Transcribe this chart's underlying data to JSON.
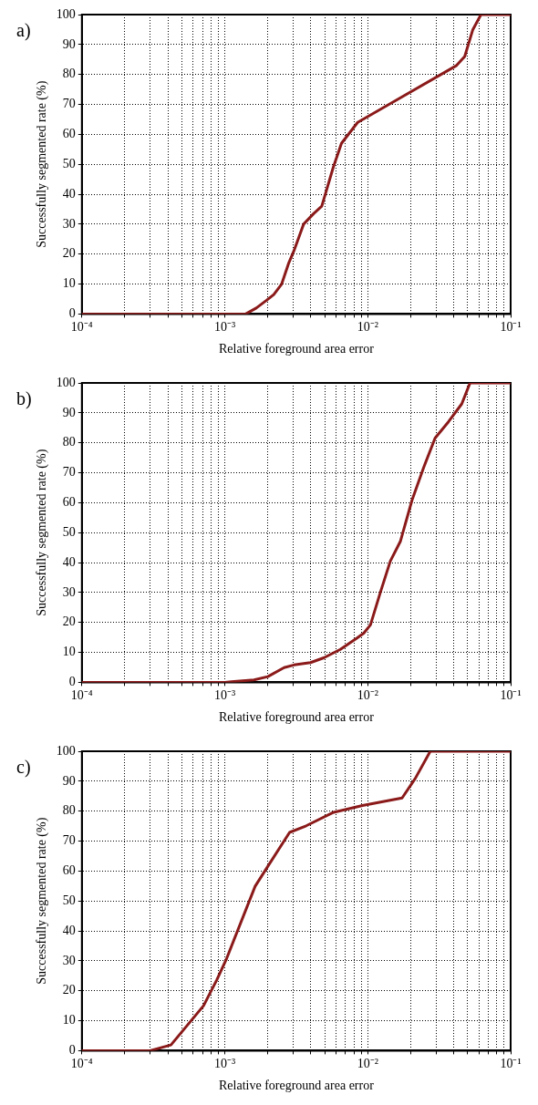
{
  "chart_data": [
    {
      "type": "line",
      "annotations": [
        "a)"
      ],
      "xlabel": "Relative foreground area error",
      "ylabel": "Successfully segmented rate (%)",
      "log": "x",
      "grid": true,
      "legend": false,
      "marker": "none",
      "line_style": "solid",
      "xlim": [
        0.0001,
        0.1
      ],
      "ylim": [
        0,
        100
      ],
      "xticks": [
        {
          "value": 0.0001,
          "label": "10⁻⁴"
        },
        {
          "value": 0.0002,
          "label": null
        },
        {
          "value": 0.0003,
          "label": null
        },
        {
          "value": 0.0004,
          "label": null
        },
        {
          "value": 0.0005,
          "label": null
        },
        {
          "value": 0.0006,
          "label": null
        },
        {
          "value": 0.0007,
          "label": null
        },
        {
          "value": 0.0008,
          "label": null
        },
        {
          "value": 0.0009,
          "label": null
        },
        {
          "value": 0.001,
          "label": "10⁻³"
        },
        {
          "value": 0.002,
          "label": null
        },
        {
          "value": 0.003,
          "label": null
        },
        {
          "value": 0.004,
          "label": null
        },
        {
          "value": 0.005,
          "label": null
        },
        {
          "value": 0.006,
          "label": null
        },
        {
          "value": 0.007,
          "label": null
        },
        {
          "value": 0.008,
          "label": null
        },
        {
          "value": 0.009,
          "label": null
        },
        {
          "value": 0.01,
          "label": "10⁻²"
        },
        {
          "value": 0.02,
          "label": null
        },
        {
          "value": 0.03,
          "label": null
        },
        {
          "value": 0.04,
          "label": null
        },
        {
          "value": 0.05,
          "label": null
        },
        {
          "value": 0.06,
          "label": null
        },
        {
          "value": 0.07,
          "label": null
        },
        {
          "value": 0.08,
          "label": null
        },
        {
          "value": 0.09,
          "label": null
        },
        {
          "value": 0.1,
          "label": "10⁻¹"
        }
      ],
      "yticks": [
        0,
        10,
        20,
        30,
        40,
        50,
        60,
        70,
        80,
        90,
        100
      ],
      "series": [
        {
          "color": "#8b1a1a",
          "x": [
            0.0001,
            0.0014,
            0.00166,
            0.00195,
            0.0022,
            0.0025,
            0.0028,
            0.00304,
            0.00356,
            0.00418,
            0.00477,
            0.00574,
            0.00655,
            0.0085,
            0.0153,
            0.0418,
            0.0477,
            0.0544,
            0.062,
            0.1
          ],
          "values": [
            0,
            0,
            2,
            4.5,
            6.5,
            10,
            17,
            21,
            30,
            33.5,
            36,
            49,
            57,
            64,
            71,
            83,
            86,
            95,
            100,
            100
          ]
        }
      ]
    },
    {
      "type": "line",
      "annotations": [
        "b)"
      ],
      "xlabel": "Relative foreground area error",
      "ylabel": "Successfully segmented rate (%)",
      "log": "x",
      "grid": true,
      "legend": false,
      "marker": "none",
      "line_style": "solid",
      "xlim": [
        0.0001,
        0.1
      ],
      "ylim": [
        0,
        100
      ],
      "xticks": [
        {
          "value": 0.0001,
          "label": "10⁻⁴"
        },
        {
          "value": 0.0002,
          "label": null
        },
        {
          "value": 0.0003,
          "label": null
        },
        {
          "value": 0.0004,
          "label": null
        },
        {
          "value": 0.0005,
          "label": null
        },
        {
          "value": 0.0006,
          "label": null
        },
        {
          "value": 0.0007,
          "label": null
        },
        {
          "value": 0.0008,
          "label": null
        },
        {
          "value": 0.0009,
          "label": null
        },
        {
          "value": 0.001,
          "label": "10⁻³"
        },
        {
          "value": 0.002,
          "label": null
        },
        {
          "value": 0.003,
          "label": null
        },
        {
          "value": 0.004,
          "label": null
        },
        {
          "value": 0.005,
          "label": null
        },
        {
          "value": 0.006,
          "label": null
        },
        {
          "value": 0.007,
          "label": null
        },
        {
          "value": 0.008,
          "label": null
        },
        {
          "value": 0.009,
          "label": null
        },
        {
          "value": 0.01,
          "label": "10⁻²"
        },
        {
          "value": 0.02,
          "label": null
        },
        {
          "value": 0.03,
          "label": null
        },
        {
          "value": 0.04,
          "label": null
        },
        {
          "value": 0.05,
          "label": null
        },
        {
          "value": 0.06,
          "label": null
        },
        {
          "value": 0.07,
          "label": null
        },
        {
          "value": 0.08,
          "label": null
        },
        {
          "value": 0.09,
          "label": null
        },
        {
          "value": 0.1,
          "label": "10⁻¹"
        }
      ],
      "yticks": [
        0,
        10,
        20,
        30,
        40,
        50,
        60,
        70,
        80,
        90,
        100
      ],
      "series": [
        {
          "color": "#8b1a1a",
          "x": [
            0.0001,
            0.001,
            0.00116,
            0.0016,
            0.002,
            0.0026,
            0.00305,
            0.00398,
            0.00493,
            0.00644,
            0.00843,
            0.00938,
            0.01045,
            0.01225,
            0.0144,
            0.0169,
            0.0204,
            0.0246,
            0.0296,
            0.0367,
            0.0455,
            0.052,
            0.1
          ],
          "values": [
            0,
            0,
            0.3,
            0.8,
            1.9,
            4.9,
            5.8,
            6.6,
            8.2,
            11,
            14.8,
            16.4,
            19.2,
            30,
            40.5,
            47,
            60.8,
            71.7,
            81.6,
            87,
            93,
            100,
            100
          ]
        }
      ]
    },
    {
      "type": "line",
      "annotations": [
        "c)"
      ],
      "xlabel": "Relative foreground area error",
      "ylabel": "Successfully segmented rate (%)",
      "log": "x",
      "grid": true,
      "legend": false,
      "marker": "none",
      "line_style": "solid",
      "xlim": [
        0.0001,
        0.1
      ],
      "ylim": [
        0,
        100
      ],
      "xticks": [
        {
          "value": 0.0001,
          "label": "10⁻⁴"
        },
        {
          "value": 0.0002,
          "label": null
        },
        {
          "value": 0.0003,
          "label": null
        },
        {
          "value": 0.0004,
          "label": null
        },
        {
          "value": 0.0005,
          "label": null
        },
        {
          "value": 0.0006,
          "label": null
        },
        {
          "value": 0.0007,
          "label": null
        },
        {
          "value": 0.0008,
          "label": null
        },
        {
          "value": 0.0009,
          "label": null
        },
        {
          "value": 0.001,
          "label": "10⁻³"
        },
        {
          "value": 0.002,
          "label": null
        },
        {
          "value": 0.003,
          "label": null
        },
        {
          "value": 0.004,
          "label": null
        },
        {
          "value": 0.005,
          "label": null
        },
        {
          "value": 0.006,
          "label": null
        },
        {
          "value": 0.007,
          "label": null
        },
        {
          "value": 0.008,
          "label": null
        },
        {
          "value": 0.009,
          "label": null
        },
        {
          "value": 0.01,
          "label": "10⁻²"
        },
        {
          "value": 0.02,
          "label": null
        },
        {
          "value": 0.03,
          "label": null
        },
        {
          "value": 0.04,
          "label": null
        },
        {
          "value": 0.05,
          "label": null
        },
        {
          "value": 0.06,
          "label": null
        },
        {
          "value": 0.07,
          "label": null
        },
        {
          "value": 0.08,
          "label": null
        },
        {
          "value": 0.09,
          "label": null
        },
        {
          "value": 0.1,
          "label": "10⁻¹"
        }
      ],
      "yticks": [
        0,
        10,
        20,
        30,
        40,
        50,
        60,
        70,
        80,
        90,
        100
      ],
      "series": [
        {
          "color": "#8b1a1a",
          "x": [
            0.0001,
            0.0003,
            0.00042,
            0.00071,
            0.00088,
            0.00103,
            0.00163,
            0.00196,
            0.00284,
            0.00371,
            0.00569,
            0.0092,
            0.0174,
            0.0215,
            0.0274,
            0.1
          ],
          "values": [
            0,
            0,
            1.9,
            15,
            23.7,
            30.8,
            54.9,
            60.9,
            72.9,
            75.1,
            79.5,
            81.9,
            84.4,
            90.9,
            100,
            100
          ]
        }
      ]
    }
  ]
}
